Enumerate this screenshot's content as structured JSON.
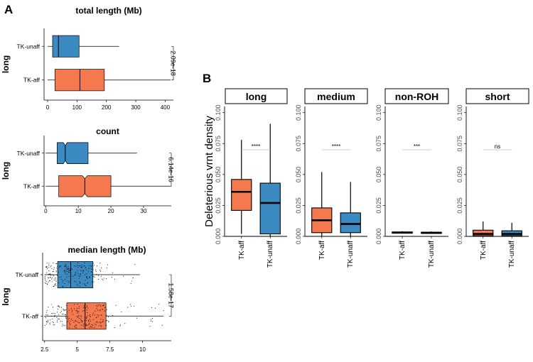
{
  "colors": {
    "aff": "#f4794f",
    "unaff": "#3b8bc2",
    "line": "#000000",
    "grey": "#bdbdbd"
  },
  "panel_labels": [
    "A",
    "B"
  ],
  "chart_data": [
    {
      "type": "boxplot-horizontal",
      "panel": "A",
      "title": "total length (Mb)",
      "row_label": "long",
      "categories": [
        "TK-unaff",
        "TK-aff"
      ],
      "x_ticks": [
        0,
        100,
        200,
        300,
        400
      ],
      "xlim": [
        -12,
        428
      ],
      "notched": false,
      "boxes": [
        {
          "name": "TK-unaff",
          "whisker_low": 0,
          "q1": 17,
          "median": 37,
          "q3": 107,
          "whisker_high": 243,
          "color": "unaff"
        },
        {
          "name": "TK-aff",
          "whisker_low": 0,
          "q1": 25,
          "median": 110,
          "q3": 193,
          "whisker_high": 418,
          "color": "aff"
        }
      ],
      "pvalue": "2.09e-18"
    },
    {
      "type": "boxplot-horizontal",
      "panel": "A",
      "title": "count",
      "row_label": "long",
      "categories": [
        "TK-unaff",
        "TK-aff"
      ],
      "x_ticks": [
        0,
        10,
        20,
        30
      ],
      "xlim": [
        -0.5,
        38.5
      ],
      "notched": true,
      "boxes": [
        {
          "name": "TK-unaff",
          "whisker_low": 0,
          "q1": 3.5,
          "median": 6,
          "q3": 13,
          "whisker_high": 28,
          "notch_low": 5.4,
          "notch_high": 6.6,
          "color": "unaff"
        },
        {
          "name": "TK-aff",
          "whisker_low": 0,
          "q1": 4,
          "median": 12,
          "q3": 20,
          "whisker_high": 38,
          "notch_low": 11.2,
          "notch_high": 12.8,
          "color": "aff"
        }
      ],
      "pvalue": "6.14e-16"
    },
    {
      "type": "boxplot-horizontal-jitter",
      "panel": "A",
      "title": "median length (Mb)",
      "row_label": "long",
      "categories": [
        "TK-unaff",
        "TK-aff"
      ],
      "x_ticks": [
        2.5,
        5.0,
        7.5,
        10.0
      ],
      "xlim": [
        2.35,
        12.2
      ],
      "notched": false,
      "boxes": [
        {
          "name": "TK-unaff",
          "whisker_low": 2.5,
          "q1": 3.5,
          "median": 4.5,
          "q3": 6.2,
          "whisker_high": 9.8,
          "color": "unaff",
          "jitter_n": 220,
          "jitter_max": 10.2
        },
        {
          "name": "TK-aff",
          "whisker_low": 2.5,
          "q1": 4.2,
          "median": 5.6,
          "q3": 7.2,
          "whisker_high": 11.6,
          "color": "aff",
          "jitter_n": 240,
          "jitter_max": 11.8
        }
      ],
      "pvalue": "1.58e-17"
    },
    {
      "type": "boxplot-facets",
      "panel": "B",
      "ylabel": "Deleterious vrnt density",
      "ylim": [
        0,
        0.105
      ],
      "y_ticks": [
        "0.000",
        "0.025",
        "0.050",
        "0.075",
        "0.100"
      ],
      "y_tick_values": [
        0,
        0.025,
        0.05,
        0.075,
        0.1
      ],
      "categories": [
        "TK-aff",
        "TK-unaff"
      ],
      "facets": [
        {
          "name": "long",
          "sig": "****",
          "boxes": [
            {
              "name": "TK-aff",
              "whisker_low": 0.002,
              "q1": 0.021,
              "median": 0.036,
              "q3": 0.046,
              "whisker_high": 0.078,
              "color": "aff"
            },
            {
              "name": "TK-unaff",
              "whisker_low": 0.0,
              "q1": 0.002,
              "median": 0.027,
              "q3": 0.043,
              "whisker_high": 0.091,
              "color": "unaff"
            }
          ]
        },
        {
          "name": "medium",
          "sig": "****",
          "boxes": [
            {
              "name": "TK-aff",
              "whisker_low": 0.0,
              "q1": 0.003,
              "median": 0.013,
              "q3": 0.023,
              "whisker_high": 0.052,
              "color": "aff"
            },
            {
              "name": "TK-unaff",
              "whisker_low": 0.0,
              "q1": 0.003,
              "median": 0.01,
              "q3": 0.019,
              "whisker_high": 0.044,
              "color": "unaff"
            }
          ]
        },
        {
          "name": "non-ROH",
          "sig": "***",
          "boxes": [
            {
              "name": "TK-aff",
              "whisker_low": 0.0024,
              "q1": 0.0026,
              "median": 0.003,
              "q3": 0.0036,
              "whisker_high": 0.0042,
              "color": "aff"
            },
            {
              "name": "TK-unaff",
              "whisker_low": 0.0022,
              "q1": 0.0024,
              "median": 0.0028,
              "q3": 0.0034,
              "whisker_high": 0.004,
              "color": "unaff"
            }
          ]
        },
        {
          "name": "short",
          "sig": "ns",
          "boxes": [
            {
              "name": "TK-aff",
              "whisker_low": 0.0,
              "q1": 0.0005,
              "median": 0.002,
              "q3": 0.005,
              "whisker_high": 0.012,
              "color": "aff"
            },
            {
              "name": "TK-unaff",
              "whisker_low": 0.0,
              "q1": 0.0005,
              "median": 0.002,
              "q3": 0.0045,
              "whisker_high": 0.011,
              "color": "unaff"
            }
          ]
        }
      ]
    }
  ]
}
